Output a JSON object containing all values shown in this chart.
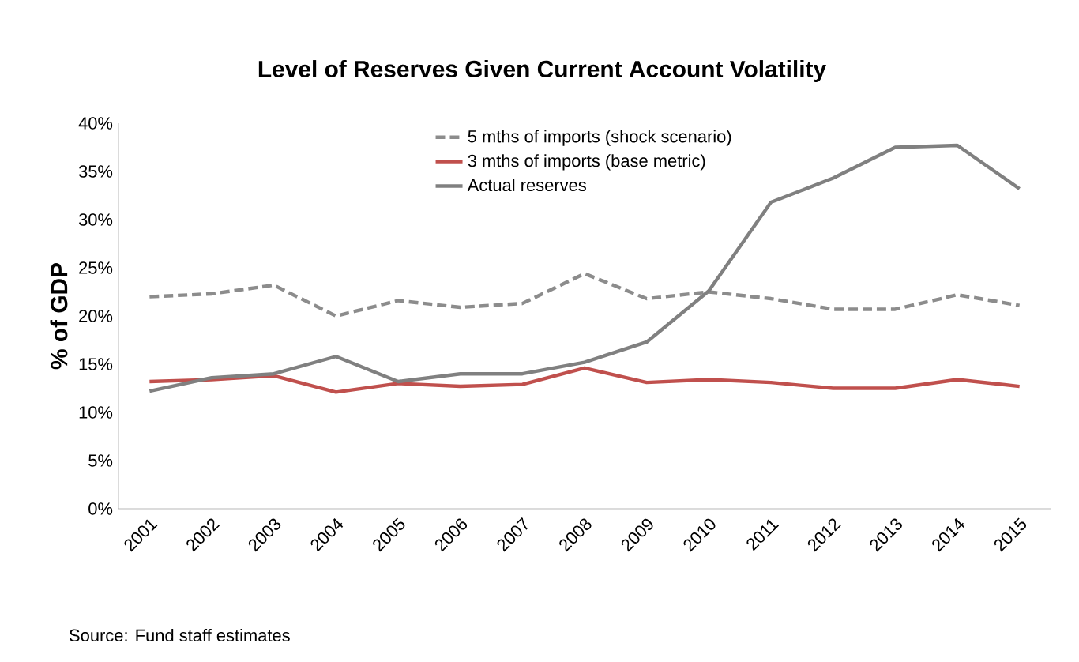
{
  "chart_data": {
    "type": "line",
    "title": "Level of Reserves Given Current Account Volatility",
    "ylabel": "% of GDP",
    "categories": [
      "2001",
      "2002",
      "2003",
      "2004",
      "2005",
      "2006",
      "2007",
      "2008",
      "2009",
      "2010",
      "2011",
      "2012",
      "2013",
      "2014",
      "2015"
    ],
    "series": [
      {
        "name": "5 mths of imports (shock scenario)",
        "color": "#8c8c8c",
        "line_style": "dashed",
        "values": [
          22.0,
          22.3,
          23.2,
          20.0,
          21.6,
          20.9,
          21.3,
          24.4,
          21.8,
          22.5,
          21.8,
          20.7,
          20.7,
          22.2,
          21.1
        ]
      },
      {
        "name": "3 mths of imports (base metric)",
        "color": "#c0504d",
        "line_style": "solid",
        "values": [
          13.2,
          13.4,
          13.8,
          12.1,
          13.0,
          12.7,
          12.9,
          14.6,
          13.1,
          13.4,
          13.1,
          12.5,
          12.5,
          13.4,
          12.7
        ]
      },
      {
        "name": "Actual reserves",
        "color": "#808080",
        "line_style": "solid",
        "values": [
          12.2,
          13.6,
          14.0,
          15.8,
          13.2,
          14.0,
          14.0,
          15.2,
          17.3,
          22.6,
          31.8,
          34.3,
          37.5,
          37.7,
          33.2
        ]
      }
    ],
    "ylim": [
      0,
      40
    ],
    "yticks": [
      {
        "value": 0,
        "label": "0%"
      },
      {
        "value": 5,
        "label": "5%"
      },
      {
        "value": 10,
        "label": "10%"
      },
      {
        "value": 15,
        "label": "15%"
      },
      {
        "value": 20,
        "label": "20%"
      },
      {
        "value": 25,
        "label": "25%"
      },
      {
        "value": 30,
        "label": "30%"
      },
      {
        "value": 35,
        "label": "35%"
      },
      {
        "value": 40,
        "label": "40%"
      }
    ],
    "grid": false,
    "legend": "top",
    "marker": "none",
    "annotations": [
      "Source: Fund staff estimates"
    ]
  }
}
